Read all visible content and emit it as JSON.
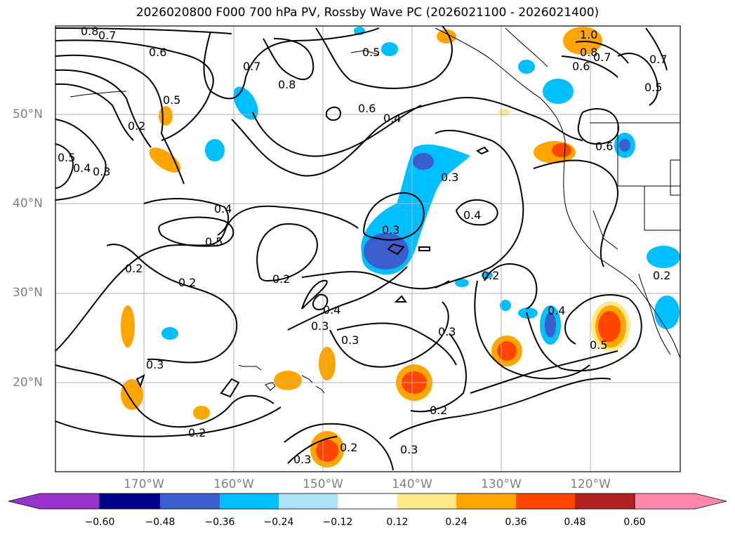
{
  "title": "2026020800 F000 700 hPa PV, Rossby Wave PC (2026021100 - 2026021400)",
  "lat_labels": [
    "50°N",
    "40°N",
    "30°N",
    "20°N"
  ],
  "lon_labels": [
    "170°W",
    "160°W",
    "150°W",
    "140°W",
    "130°W",
    "120°W"
  ],
  "colorbar": {
    "ticks": [
      "−0.60",
      "−0.48",
      "−0.36",
      "−0.24",
      "−0.12",
      "0.12",
      "0.24",
      "0.36",
      "0.48",
      "0.60"
    ],
    "colors": [
      "#9932cc",
      "#00008b",
      "#3a5fcd",
      "#00bfff",
      "#ade3f7",
      "#ffffff",
      "#ffe98a",
      "#ffa500",
      "#ff4500",
      "#b22222",
      "#ff88aa"
    ]
  },
  "contour_labels": [
    "0.8",
    "0.7",
    "0.6",
    "0.5",
    "0.2",
    "0.5",
    "0.4",
    "0.3",
    "0.7",
    "0.8",
    "0.6",
    "0.4",
    "0.5",
    "1.0",
    "0.8",
    "0.7",
    "0.6",
    "0.7",
    "0.5",
    "0.6",
    "0.3",
    "0.4",
    "0.4",
    "0.5",
    "0.3",
    "0.2",
    "0.2",
    "0.2",
    "0.4",
    "0.3",
    "0.3",
    "0.3",
    "0.2",
    "0.4",
    "0.5",
    "0.3",
    "0.2",
    "0.2",
    "0.2",
    "0.3",
    "0.3",
    "0.2"
  ]
}
